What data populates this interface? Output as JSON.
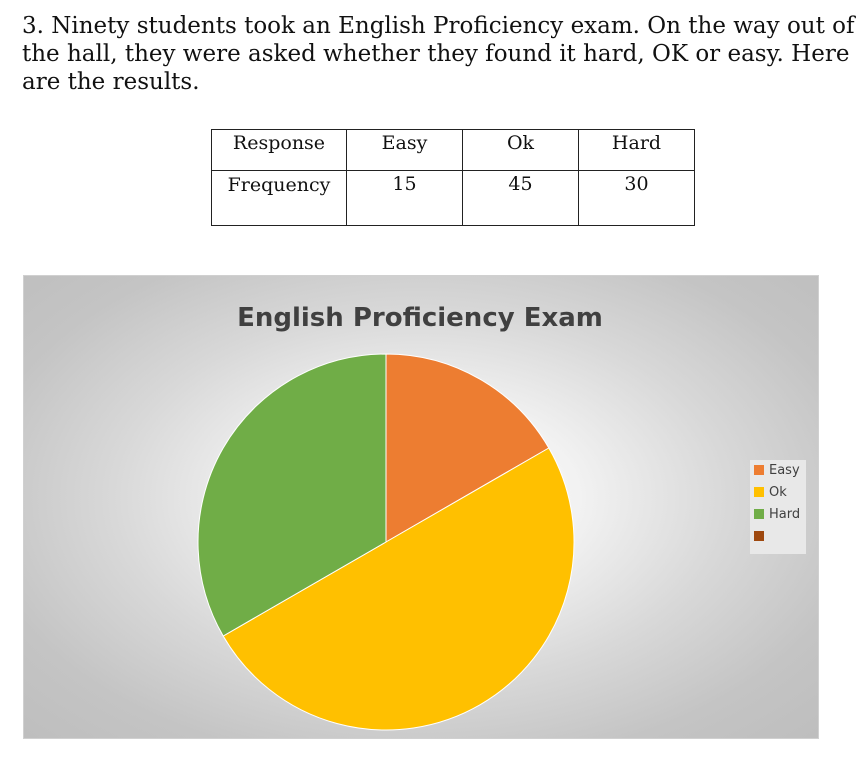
{
  "question": {
    "text": "3. Ninety students took an English Proficiency exam. On the way out of the hall, they were asked whether they found it hard, OK or easy. Here are the results."
  },
  "table": {
    "headers": [
      "Response",
      "Easy",
      "Ok",
      "Hard"
    ],
    "row": [
      "Frequency",
      "15",
      "45",
      "30"
    ]
  },
  "chart_data": {
    "type": "pie",
    "title": "English Proficiency Exam",
    "categories": [
      "Easy",
      "Ok",
      "Hard",
      ""
    ],
    "values": [
      15,
      45,
      30,
      0
    ],
    "colors": [
      "#ED7D31",
      "#FFC000",
      "#70AD47",
      "#9E480E"
    ],
    "legend_position": "right"
  }
}
